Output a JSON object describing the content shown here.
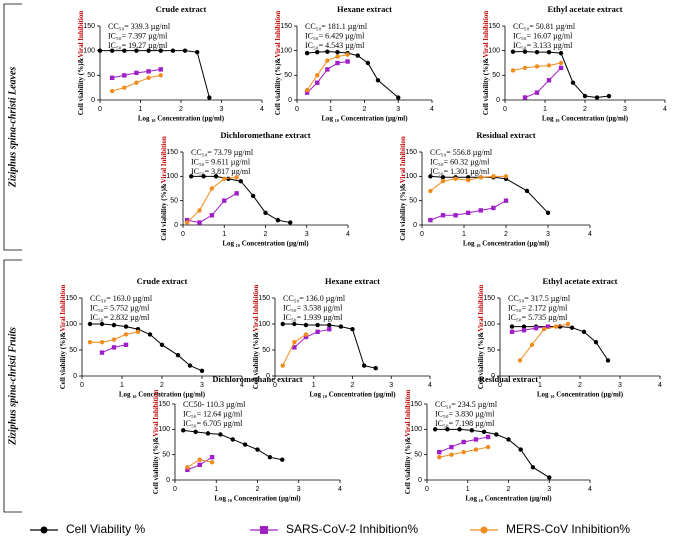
{
  "groups": [
    "Ziziphus spina-christi Leaves",
    "Ziziphus spina-christi Fruits"
  ],
  "legend": [
    {
      "label": "Cell Viability %",
      "color": "#000000"
    },
    {
      "label": "SARS-CoV-2 Inhibition%",
      "color": "#a020c8"
    },
    {
      "label": "MERS-CoV Inhibition%",
      "color": "#f08c1e"
    }
  ],
  "chart_data": [
    {
      "type": "line",
      "title": "Crude extract",
      "annotations": [
        "CC₅₀= 339.3 µg/ml",
        "IC₅₀= 7.397 µg/ml",
        "IC₅₀= 19.27 µg/ml"
      ],
      "x_label": "Log ₁₀ Concentration (µg/ml)",
      "y_label": [
        "Cell viability (%)&",
        "Viral Inhibition"
      ],
      "xlim": [
        0,
        4
      ],
      "xticks": [
        0,
        1,
        2,
        3,
        4
      ],
      "ylim": [
        0,
        150
      ],
      "yticks": [
        0,
        50,
        100,
        150
      ],
      "series": [
        {
          "color": "#000000",
          "x": [
            0,
            0.3,
            0.6,
            0.9,
            1.2,
            1.5,
            1.8,
            2.1,
            2.4,
            2.7
          ],
          "values": [
            100,
            100,
            100,
            100,
            100,
            100,
            100,
            100,
            97,
            5
          ]
        },
        {
          "color": "#a020c8",
          "x": [
            0.3,
            0.6,
            0.9,
            1.2,
            1.5
          ],
          "values": [
            45,
            50,
            55,
            58,
            62
          ]
        },
        {
          "color": "#f08c1e",
          "x": [
            0.3,
            0.6,
            0.9,
            1.2,
            1.5
          ],
          "values": [
            18,
            25,
            35,
            45,
            50
          ]
        }
      ]
    },
    {
      "type": "line",
      "title": "Hexane extract",
      "annotations": [
        "CC₅₀= 181.1 µg/ml",
        "IC₅₀= 6.429 µg/ml",
        "IC₅₀= 4.543 µg/ml"
      ],
      "x_label": "Log ₁₀ Concentration (µg/ml)",
      "y_label": [
        "Cell viability (%)&",
        "Viral Inhibition"
      ],
      "xlim": [
        0,
        4
      ],
      "xticks": [
        0,
        1,
        2,
        3,
        4
      ],
      "ylim": [
        0,
        150
      ],
      "yticks": [
        0,
        50,
        100,
        150
      ],
      "series": [
        {
          "color": "#000000",
          "x": [
            0.3,
            0.6,
            0.9,
            1.2,
            1.5,
            1.8,
            2.1,
            2.4,
            3.0
          ],
          "values": [
            95,
            97,
            98,
            97,
            95,
            90,
            75,
            40,
            5
          ]
        },
        {
          "color": "#a020c8",
          "x": [
            0.3,
            0.6,
            0.9,
            1.2,
            1.5
          ],
          "values": [
            15,
            35,
            62,
            75,
            78
          ]
        },
        {
          "color": "#f08c1e",
          "x": [
            0.3,
            0.6,
            0.9,
            1.2,
            1.5
          ],
          "values": [
            20,
            50,
            80,
            88,
            92
          ]
        }
      ]
    },
    {
      "type": "line",
      "title": "Ethyl acetate extract",
      "annotations": [
        "CC₅₀= 50.81 µg/ml",
        "IC₅₀= 16.07 µg/ml",
        "IC₅₀= 3.133 µg/ml"
      ],
      "x_label": "Log ₁₀ Concentration (µg/ml)",
      "y_label": [
        "Cell viability (%)&",
        "Viral Inhibition"
      ],
      "xlim": [
        0,
        4
      ],
      "xticks": [
        0,
        1,
        2,
        3,
        4
      ],
      "ylim": [
        0,
        150
      ],
      "yticks": [
        0,
        50,
        100,
        150
      ],
      "series": [
        {
          "color": "#000000",
          "x": [
            0.2,
            0.5,
            0.8,
            1.1,
            1.4,
            1.7,
            2.0,
            2.3,
            2.6
          ],
          "values": [
            98,
            98,
            97,
            97,
            95,
            35,
            8,
            5,
            8
          ]
        },
        {
          "color": "#a020c8",
          "x": [
            0.5,
            0.8,
            1.1,
            1.4
          ],
          "values": [
            5,
            15,
            40,
            65
          ]
        },
        {
          "color": "#f08c1e",
          "x": [
            0.2,
            0.5,
            0.8,
            1.1,
            1.4
          ],
          "values": [
            60,
            65,
            68,
            70,
            75
          ]
        }
      ]
    },
    {
      "type": "line",
      "title": "Dichloromethane extract",
      "annotations": [
        "CC₅₀= 73.79 µg/ml",
        "IC₅₀= 9.611 µg/ml",
        "IC₅₀= 3.817 µg/ml"
      ],
      "x_label": "Log ₁₀ Concentration (µg/ml)",
      "y_label": [
        "Cell viability (%)&",
        "Viral Inhibition"
      ],
      "xlim": [
        0,
        4
      ],
      "xticks": [
        0,
        1,
        2,
        3,
        4
      ],
      "ylim": [
        0,
        150
      ],
      "yticks": [
        0,
        50,
        100,
        150
      ],
      "series": [
        {
          "color": "#000000",
          "x": [
            0.2,
            0.5,
            0.8,
            1.1,
            1.4,
            1.7,
            2.0,
            2.3,
            2.6
          ],
          "values": [
            100,
            100,
            100,
            95,
            90,
            60,
            25,
            10,
            5
          ]
        },
        {
          "color": "#a020c8",
          "x": [
            0.1,
            0.4,
            0.7,
            1.0,
            1.3
          ],
          "values": [
            10,
            5,
            20,
            50,
            65
          ]
        },
        {
          "color": "#f08c1e",
          "x": [
            0.1,
            0.4,
            0.7,
            1.0,
            1.3
          ],
          "values": [
            5,
            30,
            75,
            95,
            98
          ]
        }
      ]
    },
    {
      "type": "line",
      "title": "Residual extract",
      "annotations": [
        "CC₅₀= 556.8 µg/ml",
        "IC₅₀= 60.32 µg/ml",
        "IC₅₀= 1.301 µg/ml"
      ],
      "x_label": "Log ₁₀ Concentration (µg/ml)",
      "y_label": [
        "Cell viability (%)&",
        "Viral Inhibition"
      ],
      "xlim": [
        0,
        4
      ],
      "xticks": [
        0,
        1,
        2,
        3,
        4
      ],
      "ylim": [
        0,
        150
      ],
      "yticks": [
        0,
        50,
        100,
        150
      ],
      "series": [
        {
          "color": "#000000",
          "x": [
            0.2,
            0.5,
            0.8,
            1.1,
            1.4,
            1.7,
            2.0,
            2.5,
            3.0
          ],
          "values": [
            100,
            98,
            98,
            98,
            98,
            98,
            95,
            70,
            25
          ]
        },
        {
          "color": "#a020c8",
          "x": [
            0.2,
            0.5,
            0.8,
            1.1,
            1.4,
            1.7,
            2.0
          ],
          "values": [
            10,
            20,
            20,
            25,
            30,
            35,
            50
          ]
        },
        {
          "color": "#f08c1e",
          "x": [
            0.2,
            0.5,
            0.8,
            1.1,
            1.4,
            1.7,
            2.0
          ],
          "values": [
            70,
            90,
            95,
            92,
            98,
            100,
            100
          ]
        }
      ]
    },
    {
      "type": "line",
      "title": "Crude extract",
      "annotations": [
        "CC₅₀= 163.0 µg/ml",
        "IC₅₀= 5.752 µg/ml",
        "IC₅₀= 2.832 µg/ml"
      ],
      "x_label": "Log ₁₀ Concentration (µg/ml)",
      "y_label": [
        "Cell viability (%)&",
        "Viral Inhibition"
      ],
      "xlim": [
        0,
        4
      ],
      "xticks": [
        0,
        1,
        2,
        3,
        4
      ],
      "ylim": [
        0,
        150
      ],
      "yticks": [
        0,
        50,
        100,
        150
      ],
      "series": [
        {
          "color": "#000000",
          "x": [
            0.2,
            0.5,
            0.8,
            1.1,
            1.4,
            1.7,
            2.0,
            2.4,
            2.7,
            3.0
          ],
          "values": [
            100,
            100,
            98,
            95,
            90,
            80,
            60,
            40,
            20,
            10
          ]
        },
        {
          "color": "#a020c8",
          "x": [
            0.5,
            0.8,
            1.1
          ],
          "values": [
            45,
            55,
            60
          ]
        },
        {
          "color": "#f08c1e",
          "x": [
            0.2,
            0.5,
            0.8,
            1.1,
            1.4
          ],
          "values": [
            65,
            65,
            70,
            80,
            85
          ]
        }
      ]
    },
    {
      "type": "line",
      "title": "Hexane extract",
      "annotations": [
        "CC₅₀= 136.0 µg/ml",
        "IC₅₀= 3.538 µg/ml",
        "IC₅₀= 1.939 µg/ml"
      ],
      "x_label": "Log ₁₀ Concentration (µg/ml)",
      "y_label": [
        "Cell viability (%)&",
        "Viral Inhibition"
      ],
      "xlim": [
        0,
        4
      ],
      "xticks": [
        0,
        1,
        2,
        3,
        4
      ],
      "ylim": [
        0,
        150
      ],
      "yticks": [
        0,
        50,
        100,
        150
      ],
      "series": [
        {
          "color": "#000000",
          "x": [
            0.2,
            0.5,
            0.8,
            1.1,
            1.4,
            1.7,
            2.0,
            2.3,
            2.6
          ],
          "values": [
            100,
            100,
            98,
            98,
            98,
            95,
            90,
            20,
            15
          ]
        },
        {
          "color": "#a020c8",
          "x": [
            0.5,
            0.8,
            1.1,
            1.4
          ],
          "values": [
            55,
            75,
            85,
            90
          ]
        },
        {
          "color": "#f08c1e",
          "x": [
            0.2,
            0.5,
            0.8
          ],
          "values": [
            20,
            65,
            80
          ]
        }
      ]
    },
    {
      "type": "line",
      "title": "Ethyl acetate extract",
      "annotations": [
        "CC₅₀= 317.5 µg/ml",
        "IC₅₀= 2.172 µg/ml",
        "IC₅₀= 5.735 µg/ml"
      ],
      "x_label": "Log ₁₀ Concentration (µg/ml)",
      "y_label": [
        "Cell viability (%)&",
        "Viral Inhibition"
      ],
      "xlim": [
        0,
        4
      ],
      "xticks": [
        0,
        1,
        2,
        3,
        4
      ],
      "ylim": [
        0,
        150
      ],
      "yticks": [
        0,
        50,
        100,
        150
      ],
      "series": [
        {
          "color": "#000000",
          "x": [
            0.3,
            0.6,
            0.9,
            1.2,
            1.5,
            1.8,
            2.1,
            2.4,
            2.7
          ],
          "values": [
            95,
            95,
            95,
            95,
            95,
            93,
            85,
            65,
            30
          ]
        },
        {
          "color": "#a020c8",
          "x": [
            0.3,
            0.6,
            0.9,
            1.2
          ],
          "values": [
            85,
            88,
            92,
            95
          ]
        },
        {
          "color": "#f08c1e",
          "x": [
            0.5,
            0.8,
            1.1,
            1.4,
            1.7
          ],
          "values": [
            30,
            60,
            90,
            95,
            100
          ]
        }
      ]
    },
    {
      "type": "line",
      "title": "Dichloromethane extract",
      "annotations": [
        "CC50- 110.3 µg/ml",
        "IC₅₀= 12.64 µg/ml",
        "IC₅₀= 6.705 µg/ml"
      ],
      "x_label": "Log ₁₀ Concentration (µg/ml)",
      "y_label": [
        "Cell viability (%)&",
        "Viral Inhibition"
      ],
      "xlim": [
        0,
        4
      ],
      "xticks": [
        0,
        1,
        2,
        3,
        4
      ],
      "ylim": [
        0,
        150
      ],
      "yticks": [
        0,
        50,
        100,
        150
      ],
      "series": [
        {
          "color": "#000000",
          "x": [
            0.2,
            0.5,
            0.8,
            1.1,
            1.4,
            1.7,
            2.0,
            2.3,
            2.6
          ],
          "values": [
            98,
            95,
            92,
            90,
            80,
            70,
            60,
            45,
            40
          ]
        },
        {
          "color": "#a020c8",
          "x": [
            0.3,
            0.6,
            0.9
          ],
          "values": [
            20,
            30,
            45
          ]
        },
        {
          "color": "#f08c1e",
          "x": [
            0.3,
            0.6,
            0.9
          ],
          "values": [
            25,
            40,
            35
          ]
        }
      ]
    },
    {
      "type": "line",
      "title": "Residual extract",
      "annotations": [
        "CC₅₀= 234.5 µg/ml",
        "IC₅₀= 3.830 µg/ml",
        "IC₅₀= 7.198 µg/ml"
      ],
      "x_label": "Log ₁₀ Concentration (µg/ml)",
      "y_label": [
        "Cell viability (%)&",
        "Viral Inhibition"
      ],
      "xlim": [
        0,
        4
      ],
      "xticks": [
        0,
        1,
        2,
        3,
        4
      ],
      "ylim": [
        0,
        150
      ],
      "yticks": [
        0,
        50,
        100,
        150
      ],
      "series": [
        {
          "color": "#000000",
          "x": [
            0.2,
            0.5,
            0.8,
            1.1,
            1.4,
            1.7,
            2.0,
            2.3,
            2.6,
            3.0
          ],
          "values": [
            100,
            100,
            100,
            98,
            95,
            90,
            80,
            60,
            25,
            5
          ]
        },
        {
          "color": "#a020c8",
          "x": [
            0.3,
            0.6,
            0.9,
            1.2,
            1.5
          ],
          "values": [
            55,
            65,
            75,
            80,
            85
          ]
        },
        {
          "color": "#f08c1e",
          "x": [
            0.3,
            0.6,
            0.9,
            1.2,
            1.5
          ],
          "values": [
            45,
            50,
            55,
            60,
            65
          ]
        }
      ]
    }
  ]
}
